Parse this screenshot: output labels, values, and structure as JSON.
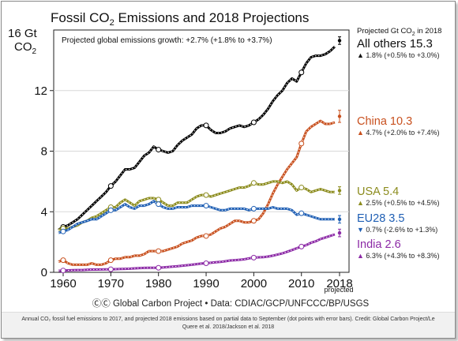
{
  "chart_data": {
    "type": "line",
    "title_main": "Fossil CO",
    "title_sub": "2",
    "title_rest": " Emissions and 2018 Projections",
    "ylabel_line1": "16 Gt",
    "ylabel_line2": "CO",
    "ylabel_sub": "2",
    "subtitle": "Projected global emissions growth: +2.7% (+1.8% to +3.7%)",
    "legend_header": "Projected Gt CO",
    "legend_header_sub": "2",
    "legend_header_rest": " in 2018",
    "xlim": [
      1960,
      2018
    ],
    "ylim": [
      0,
      16
    ],
    "xticks": [
      "1960",
      "1970",
      "1980",
      "1990",
      "2000",
      "2010",
      "2018"
    ],
    "yticks": [
      "0",
      "4",
      "8",
      "12"
    ],
    "projected_label": "projected",
    "series": [
      {
        "name": "All others",
        "value_label": "15.3",
        "growth": "1.8% (+0.5% to +3.0%)",
        "arrow": "▲",
        "color": "#000000",
        "x": [
          1959,
          1960,
          1961,
          1962,
          1963,
          1964,
          1965,
          1966,
          1967,
          1968,
          1969,
          1970,
          1971,
          1972,
          1973,
          1974,
          1975,
          1976,
          1977,
          1978,
          1979,
          1980,
          1981,
          1982,
          1983,
          1984,
          1985,
          1986,
          1987,
          1988,
          1989,
          1990,
          1991,
          1992,
          1993,
          1994,
          1995,
          1996,
          1997,
          1998,
          1999,
          2000,
          2001,
          2002,
          2003,
          2004,
          2005,
          2006,
          2007,
          2008,
          2009,
          2010,
          2011,
          2012,
          2013,
          2014,
          2015,
          2016,
          2017,
          2018
        ],
        "values": [
          2.8,
          3.0,
          3.1,
          3.3,
          3.5,
          3.8,
          4.1,
          4.4,
          4.7,
          5.0,
          5.3,
          5.7,
          6.0,
          6.4,
          6.8,
          6.8,
          6.9,
          7.3,
          7.7,
          7.9,
          8.3,
          8.1,
          8.0,
          7.9,
          8.0,
          8.4,
          8.7,
          8.9,
          9.1,
          9.5,
          9.7,
          9.7,
          9.4,
          9.2,
          9.2,
          9.3,
          9.5,
          9.6,
          9.7,
          9.6,
          9.7,
          9.9,
          10.1,
          10.4,
          10.8,
          11.3,
          11.7,
          12.0,
          12.5,
          12.8,
          12.6,
          13.2,
          13.8,
          14.2,
          14.3,
          14.3,
          14.4,
          14.6,
          14.9,
          15.3
        ]
      },
      {
        "name": "China",
        "value_label": "10.3",
        "growth": "4.7% (+2.0% to +7.4%)",
        "arrow": "▲",
        "color": "#c8501e",
        "x": [
          1959,
          1960,
          1961,
          1962,
          1963,
          1964,
          1965,
          1966,
          1967,
          1968,
          1969,
          1970,
          1971,
          1972,
          1973,
          1974,
          1975,
          1976,
          1977,
          1978,
          1979,
          1980,
          1981,
          1982,
          1983,
          1984,
          1985,
          1986,
          1987,
          1988,
          1989,
          1990,
          1991,
          1992,
          1993,
          1994,
          1995,
          1996,
          1997,
          1998,
          1999,
          2000,
          2001,
          2002,
          2003,
          2004,
          2005,
          2006,
          2007,
          2008,
          2009,
          2010,
          2011,
          2012,
          2013,
          2014,
          2015,
          2016,
          2017,
          2018
        ],
        "values": [
          0.7,
          0.8,
          0.6,
          0.5,
          0.5,
          0.5,
          0.5,
          0.6,
          0.5,
          0.5,
          0.6,
          0.8,
          0.9,
          0.9,
          1.0,
          1.0,
          1.1,
          1.1,
          1.2,
          1.4,
          1.4,
          1.4,
          1.4,
          1.5,
          1.6,
          1.7,
          1.9,
          2.0,
          2.1,
          2.3,
          2.4,
          2.4,
          2.5,
          2.7,
          2.9,
          3.0,
          3.2,
          3.4,
          3.4,
          3.3,
          3.3,
          3.4,
          3.5,
          3.9,
          4.5,
          5.2,
          5.8,
          6.3,
          6.8,
          7.2,
          7.6,
          8.5,
          9.3,
          9.6,
          9.8,
          10.0,
          9.8,
          9.8,
          9.9,
          10.3
        ]
      },
      {
        "name": "USA",
        "value_label": "5.4",
        "growth": "2.5% (+0.5% to +4.5%)",
        "arrow": "▲",
        "color": "#8c8c1e",
        "x": [
          1959,
          1960,
          1961,
          1962,
          1963,
          1964,
          1965,
          1966,
          1967,
          1968,
          1969,
          1970,
          1971,
          1972,
          1973,
          1974,
          1975,
          1976,
          1977,
          1978,
          1979,
          1980,
          1981,
          1982,
          1983,
          1984,
          1985,
          1986,
          1987,
          1988,
          1989,
          1990,
          1991,
          1992,
          1993,
          1994,
          1995,
          1996,
          1997,
          1998,
          1999,
          2000,
          2001,
          2002,
          2003,
          2004,
          2005,
          2006,
          2007,
          2008,
          2009,
          2010,
          2011,
          2012,
          2013,
          2014,
          2015,
          2016,
          2017,
          2018
        ],
        "values": [
          2.8,
          2.9,
          2.9,
          3.0,
          3.1,
          3.3,
          3.4,
          3.6,
          3.7,
          3.9,
          4.1,
          4.3,
          4.3,
          4.6,
          4.8,
          4.6,
          4.4,
          4.7,
          4.8,
          4.9,
          4.9,
          4.8,
          4.6,
          4.4,
          4.4,
          4.6,
          4.6,
          4.6,
          4.8,
          5.0,
          5.1,
          5.1,
          5.0,
          5.1,
          5.2,
          5.3,
          5.4,
          5.5,
          5.6,
          5.6,
          5.7,
          5.9,
          5.8,
          5.8,
          5.9,
          6.0,
          6.0,
          5.9,
          6.0,
          5.8,
          5.4,
          5.6,
          5.5,
          5.3,
          5.4,
          5.5,
          5.4,
          5.3,
          5.3,
          5.4
        ]
      },
      {
        "name": "EU28",
        "value_label": "3.5",
        "growth": "0.7% (-2.6% to +1.3%)",
        "arrow": "▼",
        "color": "#1f5fb4",
        "x": [
          1959,
          1960,
          1961,
          1962,
          1963,
          1964,
          1965,
          1966,
          1967,
          1968,
          1969,
          1970,
          1971,
          1972,
          1973,
          1974,
          1975,
          1976,
          1977,
          1978,
          1979,
          1980,
          1981,
          1982,
          1983,
          1984,
          1985,
          1986,
          1987,
          1988,
          1989,
          1990,
          1991,
          1992,
          1993,
          1994,
          1995,
          1996,
          1997,
          1998,
          1999,
          2000,
          2001,
          2002,
          2003,
          2004,
          2005,
          2006,
          2007,
          2008,
          2009,
          2010,
          2011,
          2012,
          2013,
          2014,
          2015,
          2016,
          2017,
          2018
        ],
        "values": [
          2.6,
          2.7,
          2.8,
          3.0,
          3.2,
          3.3,
          3.4,
          3.5,
          3.5,
          3.7,
          3.9,
          4.1,
          4.1,
          4.3,
          4.5,
          4.3,
          4.2,
          4.4,
          4.4,
          4.5,
          4.7,
          4.5,
          4.3,
          4.2,
          4.2,
          4.3,
          4.3,
          4.3,
          4.4,
          4.4,
          4.4,
          4.4,
          4.3,
          4.2,
          4.1,
          4.1,
          4.2,
          4.2,
          4.2,
          4.2,
          4.1,
          4.2,
          4.2,
          4.2,
          4.2,
          4.3,
          4.2,
          4.2,
          4.2,
          4.1,
          3.8,
          3.9,
          3.8,
          3.7,
          3.6,
          3.5,
          3.5,
          3.5,
          3.5,
          3.5
        ]
      },
      {
        "name": "India",
        "value_label": "2.6",
        "growth": "6.3% (+4.3% to +8.3%)",
        "arrow": "▲",
        "color": "#8c2aa6",
        "x": [
          1959,
          1960,
          1961,
          1962,
          1963,
          1964,
          1965,
          1966,
          1967,
          1968,
          1969,
          1970,
          1971,
          1972,
          1973,
          1974,
          1975,
          1976,
          1977,
          1978,
          1979,
          1980,
          1981,
          1982,
          1983,
          1984,
          1985,
          1986,
          1987,
          1988,
          1989,
          1990,
          1991,
          1992,
          1993,
          1994,
          1995,
          1996,
          1997,
          1998,
          1999,
          2000,
          2001,
          2002,
          2003,
          2004,
          2005,
          2006,
          2007,
          2008,
          2009,
          2010,
          2011,
          2012,
          2013,
          2014,
          2015,
          2016,
          2017,
          2018
        ],
        "values": [
          0.1,
          0.12,
          0.13,
          0.14,
          0.15,
          0.15,
          0.17,
          0.18,
          0.18,
          0.19,
          0.2,
          0.2,
          0.21,
          0.22,
          0.23,
          0.24,
          0.26,
          0.28,
          0.29,
          0.3,
          0.3,
          0.3,
          0.33,
          0.35,
          0.38,
          0.4,
          0.44,
          0.47,
          0.5,
          0.54,
          0.58,
          0.6,
          0.63,
          0.66,
          0.69,
          0.73,
          0.78,
          0.8,
          0.83,
          0.86,
          0.92,
          0.97,
          0.99,
          1.0,
          1.04,
          1.1,
          1.18,
          1.25,
          1.36,
          1.47,
          1.59,
          1.7,
          1.8,
          1.95,
          2.05,
          2.2,
          2.3,
          2.4,
          2.5,
          2.6
        ]
      }
    ]
  },
  "footer": {
    "logos": "ⒸⒸ",
    "source": "Global Carbon Project",
    "bullet": "•",
    "data": "Data: CDIAC/GCP/UNFCCC/BP/USGS"
  },
  "caption": {
    "line1": "Annual CO₂ fossil fuel emissions to 2017, and projected 2018 emissions based on partial data to September (dot points with error bars). Credit: Global Carbon Project/Le",
    "line2": "Quere et al. 2018/Jackson et al. 2018"
  }
}
